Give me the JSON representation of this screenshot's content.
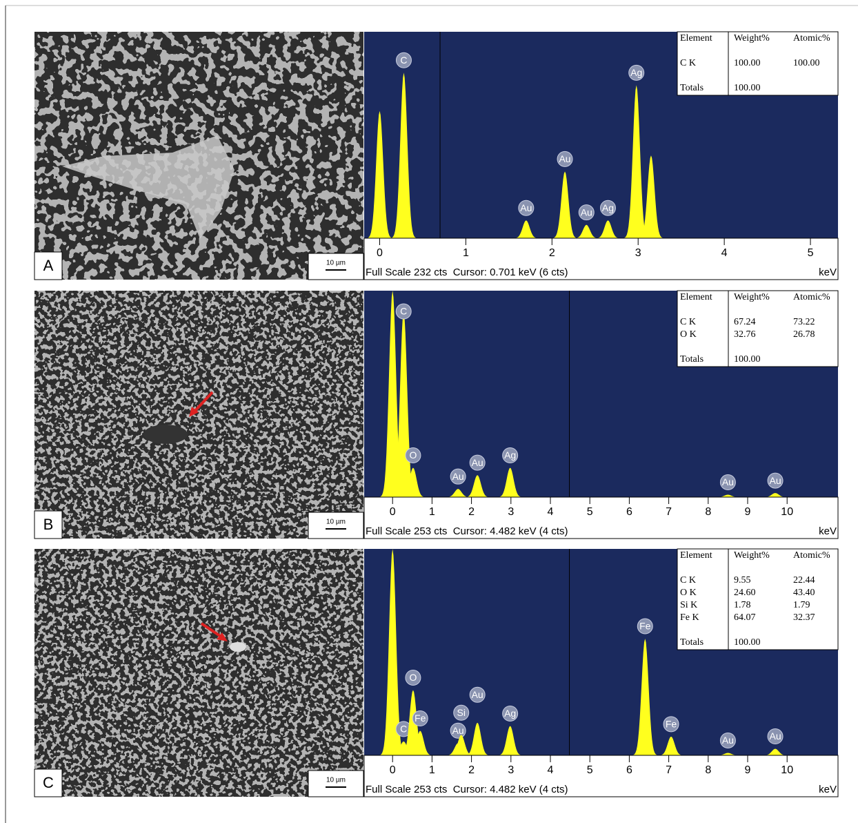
{
  "panels": [
    {
      "label": "A",
      "scale_bar": "10 µm",
      "spectrum": {
        "xlim": [
          -0.18,
          5.32
        ],
        "xticks": [
          0,
          1,
          2,
          3,
          4,
          5
        ],
        "ylim": [
          0,
          232
        ],
        "unit": "keV",
        "cursor": 0.701,
        "footer": "Full Scale 232 cts  Cursor: 0.701 keV (6 cts)",
        "peaks": [
          {
            "x": 0,
            "height": 143
          },
          {
            "x": 0.28,
            "height": 186,
            "label": "C"
          },
          {
            "x": 1.7,
            "height": 20,
            "label": "Au"
          },
          {
            "x": 2.15,
            "height": 75,
            "label": "Au"
          },
          {
            "x": 2.4,
            "height": 15,
            "label": "Au"
          },
          {
            "x": 2.65,
            "height": 20,
            "label": "Ag"
          },
          {
            "x": 2.98,
            "height": 172,
            "label": "Ag"
          },
          {
            "x": 3.15,
            "height": 93
          }
        ]
      },
      "table": {
        "header": [
          "Element",
          "Weight%",
          "Atomic%"
        ],
        "rows": [
          [
            "C K",
            "100.00",
            "100.00"
          ]
        ],
        "totals": [
          "Totals",
          "100.00"
        ]
      }
    },
    {
      "label": "B",
      "scale_bar": "10 µm",
      "spectrum": {
        "xlim": [
          -0.72,
          11.29
        ],
        "xticks": [
          0,
          1,
          2,
          3,
          4,
          5,
          6,
          7,
          8,
          9,
          10
        ],
        "ylim": [
          0,
          253
        ],
        "unit": "keV",
        "cursor": 4.482,
        "footer": "Full Scale 253 cts  Cursor: 4.482 keV (4 cts)",
        "peaks": [
          {
            "x": 0,
            "height": 253
          },
          {
            "x": 0.28,
            "height": 228,
            "label": "C"
          },
          {
            "x": 0.52,
            "height": 36,
            "label": "O"
          },
          {
            "x": 1.66,
            "height": 10,
            "label": "Au"
          },
          {
            "x": 2.15,
            "height": 27,
            "label": "Au"
          },
          {
            "x": 2.98,
            "height": 36,
            "label": "Ag"
          },
          {
            "x": 8.5,
            "height": 3,
            "label": "Au"
          },
          {
            "x": 9.7,
            "height": 5,
            "label": "Au"
          }
        ]
      },
      "table": {
        "header": [
          "Element",
          "Weight%",
          "Atomic%"
        ],
        "rows": [
          [
            "C K",
            "67.24",
            "73.22"
          ],
          [
            "O K",
            "32.76",
            "26.78"
          ]
        ],
        "totals": [
          "Totals",
          "100.00"
        ]
      }
    },
    {
      "label": "C",
      "scale_bar": "10 µm",
      "spectrum": {
        "xlim": [
          -0.72,
          11.29
        ],
        "xticks": [
          0,
          1,
          2,
          3,
          4,
          5,
          6,
          7,
          8,
          9,
          10
        ],
        "ylim": [
          0,
          253
        ],
        "unit": "keV",
        "cursor": 4.482,
        "footer": "Full Scale 253 cts  Cursor: 4.482 keV (4 cts)",
        "peaks": [
          {
            "x": 0,
            "height": 253
          },
          {
            "x": 0.28,
            "height": 17,
            "label": "C"
          },
          {
            "x": 0.52,
            "height": 80,
            "label": "O"
          },
          {
            "x": 0.7,
            "height": 30,
            "label": "Fe"
          },
          {
            "x": 1.66,
            "height": 15,
            "label": "Au"
          },
          {
            "x": 1.74,
            "height": 25,
            "label": "Si"
          },
          {
            "x": 2.15,
            "height": 40,
            "label": "Au"
          },
          {
            "x": 2.98,
            "height": 36,
            "label": "Ag"
          },
          {
            "x": 6.4,
            "height": 143,
            "label": "Fe"
          },
          {
            "x": 7.06,
            "height": 23,
            "label": "Fe"
          },
          {
            "x": 8.5,
            "height": 3,
            "label": "Au"
          },
          {
            "x": 9.7,
            "height": 8,
            "label": "Au"
          }
        ]
      },
      "table": {
        "header": [
          "Element",
          "Weight%",
          "Atomic%"
        ],
        "rows": [
          [
            "C K",
            "9.55",
            "22.44"
          ],
          [
            "O K",
            "24.60",
            "43.40"
          ],
          [
            "Si K",
            "1.78",
            "1.79"
          ],
          [
            "Fe K",
            "64.07",
            "32.37"
          ]
        ],
        "totals": [
          "Totals",
          "100.00"
        ]
      }
    }
  ]
}
